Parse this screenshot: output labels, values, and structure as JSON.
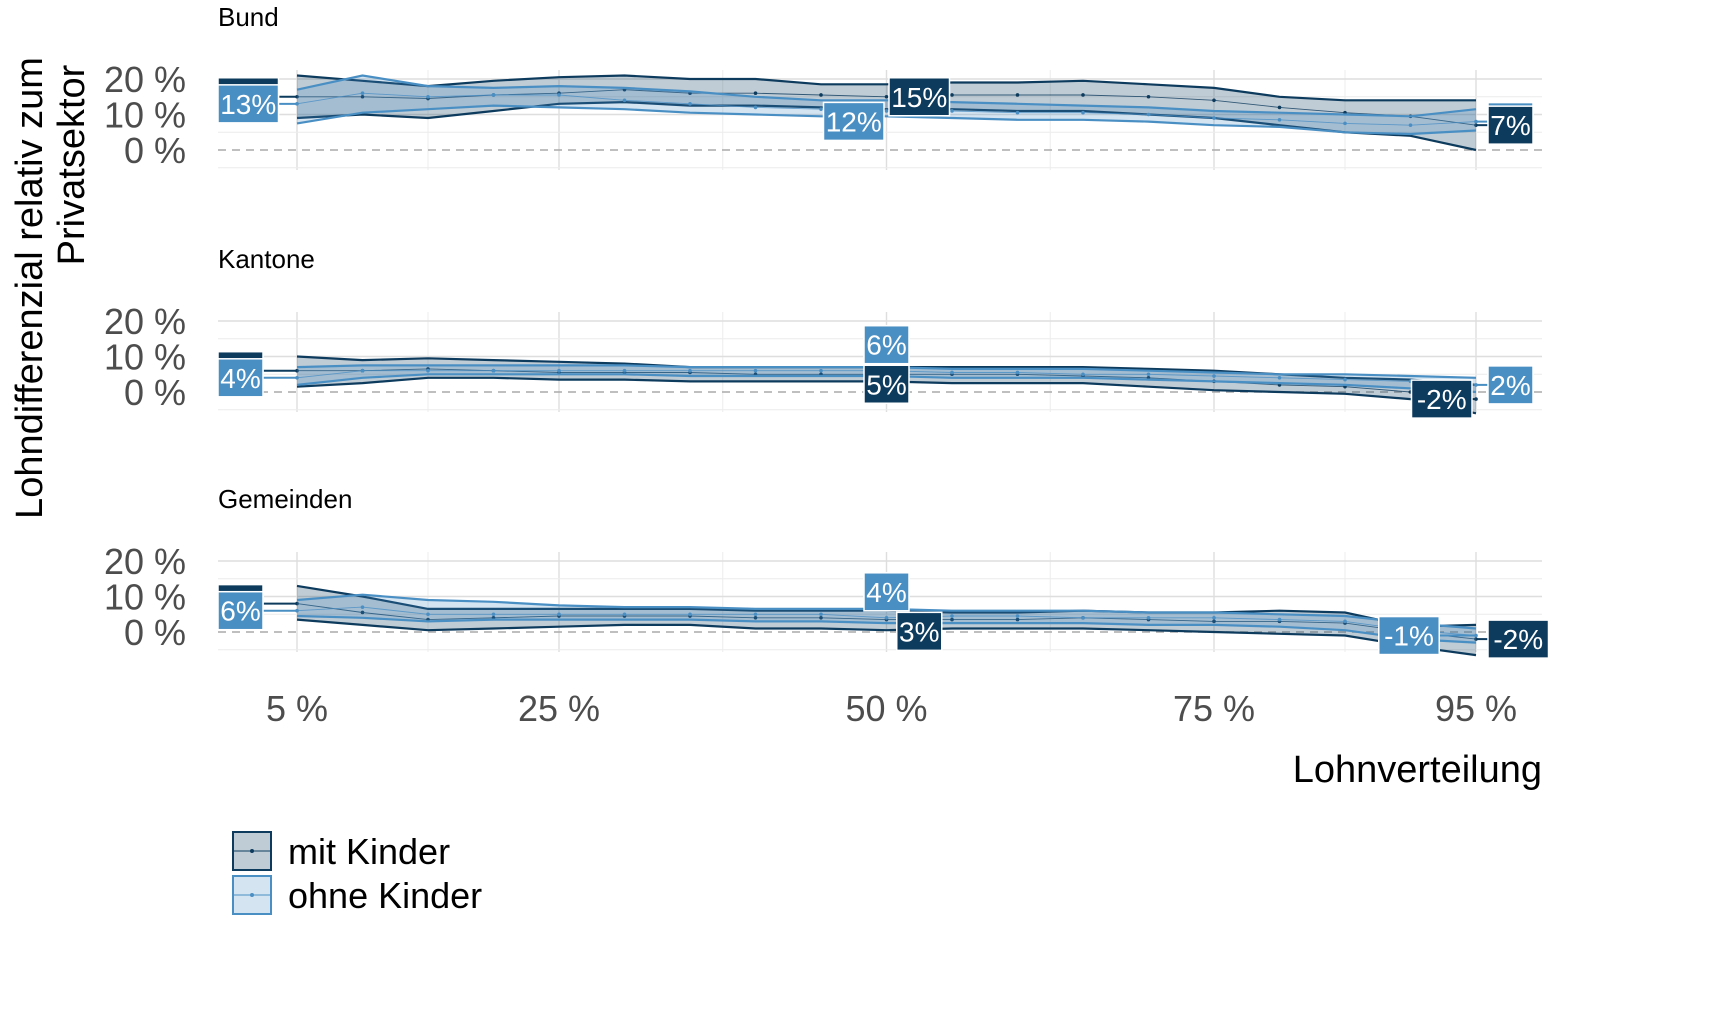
{
  "chart_data": {
    "type": "line",
    "ylabel": "Lohndifferenzial relativ zum Privatsektor",
    "ylabel_lines": [
      "Lohndifferenzial relativ zum",
      "Privatsektor"
    ],
    "xlabel": "Lohnverteilung",
    "x_ticks": [
      5,
      25,
      50,
      75,
      95
    ],
    "x_tick_labels": [
      "5 %",
      "25 %",
      "50 %",
      "75 %",
      "95 %"
    ],
    "y_ticks": [
      0,
      10,
      20
    ],
    "y_tick_labels": [
      "0 %",
      "10 %",
      "20 %"
    ],
    "xlim": [
      0,
      100
    ],
    "ylim": [
      -5,
      20
    ],
    "legend": {
      "placement": "bottom-left",
      "entries": [
        "mit Kinder",
        "ohne Kinder"
      ]
    },
    "colors": {
      "mit": "#0d3b5e",
      "ohne": "#4a8fc4",
      "mit_fill": "#0d3b5e",
      "ohne_fill": "#4a8fc4"
    },
    "x": [
      5,
      10,
      15,
      20,
      25,
      30,
      35,
      40,
      45,
      50,
      55,
      60,
      65,
      70,
      75,
      80,
      85,
      90,
      95
    ],
    "panels": [
      {
        "title": "Bund",
        "series": [
          {
            "name": "mit Kinder",
            "key": "mit",
            "estimate": [
              15,
              15,
              14.5,
              15.5,
              16,
              17,
              16,
              16,
              15.5,
              15,
              15.5,
              15.5,
              15.5,
              15,
              14,
              12,
              10.5,
              9.5,
              7
            ],
            "lower": [
              9,
              10,
              9,
              11,
              13,
              13.5,
              12.5,
              12.5,
              12,
              11.5,
              11.5,
              11,
              11,
              10,
              9,
              7,
              5,
              4,
              0
            ],
            "upper": [
              21,
              19.5,
              18,
              19.5,
              20.5,
              21,
              20,
              20,
              18.5,
              18.5,
              19,
              19,
              19.5,
              18.5,
              17.5,
              15,
              14,
              14,
              14
            ]
          },
          {
            "name": "ohne Kinder",
            "key": "ohne",
            "estimate": [
              13,
              16,
              15,
              15.5,
              15.5,
              14,
              13,
              12,
              11.5,
              11,
              11,
              10.5,
              10.5,
              10,
              9,
              8.5,
              7.5,
              7,
              8
            ],
            "lower": [
              7.5,
              10.5,
              11.5,
              12.5,
              12,
              11.5,
              10.5,
              10,
              9.5,
              9.5,
              9,
              8.5,
              8.5,
              8,
              7,
              6.5,
              5,
              4.5,
              5.5
            ],
            "upper": [
              17,
              21,
              18,
              17.5,
              18,
              17.5,
              16.5,
              15,
              14,
              14,
              13.5,
              13,
              12.5,
              12,
              11,
              10.5,
              10,
              9.5,
              11.5
            ]
          }
        ],
        "labels": [
          {
            "series": "mit",
            "text": "15%",
            "pos": "start",
            "at": 5,
            "value": 15
          },
          {
            "series": "ohne",
            "text": "13%",
            "pos": "start",
            "at": 5,
            "value": 13
          },
          {
            "series": "mit",
            "text": "15%",
            "pos": "mid",
            "at": 52.5,
            "value": 15
          },
          {
            "series": "ohne",
            "text": "12%",
            "pos": "mid",
            "at": 47.5,
            "value": 12
          },
          {
            "series": "ohne",
            "text": "8%",
            "pos": "end",
            "at": 95,
            "value": 8
          },
          {
            "series": "mit",
            "text": "7%",
            "pos": "end",
            "at": 95,
            "value": 7
          }
        ]
      },
      {
        "title": "Kantone",
        "series": [
          {
            "name": "mit Kinder",
            "key": "mit",
            "estimate": [
              6,
              6,
              6.5,
              6,
              5.5,
              5.5,
              5.5,
              5,
              5,
              5,
              5,
              5,
              4.5,
              4,
              3,
              2,
              1.5,
              0,
              -2
            ],
            "lower": [
              1.5,
              2.5,
              4,
              4,
              3.5,
              3.5,
              3,
              3,
              3,
              3,
              2.5,
              2.5,
              2.5,
              1.5,
              0.5,
              0,
              -0.5,
              -2,
              -6
            ],
            "upper": [
              10,
              9,
              9.5,
              9,
              8.5,
              8,
              7,
              7,
              7,
              7,
              7,
              7,
              7,
              6.5,
              6,
              5,
              4,
              3.5,
              2
            ]
          },
          {
            "name": "ohne Kinder",
            "key": "ohne",
            "estimate": [
              4,
              6,
              6,
              6,
              6,
              6,
              6,
              6,
              6,
              6,
              5.5,
              5.5,
              5,
              5,
              4.5,
              4,
              3.5,
              3,
              2
            ],
            "lower": [
              2,
              4,
              5,
              5,
              5,
              5,
              4.5,
              4.5,
              4.5,
              4.5,
              4,
              4,
              4,
              3.5,
              3,
              2.5,
              2,
              1,
              0
            ],
            "upper": [
              7,
              7.5,
              7.5,
              7.5,
              7.5,
              7.5,
              7,
              7,
              7,
              7,
              6.5,
              6.5,
              6.5,
              6,
              5.5,
              5,
              5,
              4.5,
              4
            ]
          }
        ],
        "labels": [
          {
            "series": "mit",
            "text": "6%",
            "pos": "start",
            "at": 5,
            "value": 6
          },
          {
            "series": "ohne",
            "text": "4%",
            "pos": "start",
            "at": 5,
            "value": 4
          },
          {
            "series": "ohne",
            "text": "6%",
            "pos": "mid",
            "at": 50,
            "value": 6
          },
          {
            "series": "mit",
            "text": "5%",
            "pos": "mid",
            "at": 50,
            "value": 5
          },
          {
            "series": "ohne",
            "text": "2%",
            "pos": "end",
            "at": 95,
            "value": 2
          },
          {
            "series": "mit",
            "text": "-2%",
            "pos": "inner-end",
            "at": 95,
            "value": -2
          }
        ]
      },
      {
        "title": "Gemeinden",
        "series": [
          {
            "name": "mit Kinder",
            "key": "mit",
            "estimate": [
              8,
              5.5,
              3.5,
              4,
              4.5,
              4.5,
              4.5,
              4,
              4,
              3.5,
              3.5,
              3.5,
              4,
              3.5,
              3,
              3,
              2.5,
              0,
              -2
            ],
            "lower": [
              3.5,
              2,
              0.5,
              1,
              1.5,
              2,
              2,
              1,
              1,
              0.5,
              1,
              1,
              1,
              0.5,
              0,
              -0.5,
              -1,
              -4,
              -6.5
            ],
            "upper": [
              13,
              10,
              6.5,
              6.5,
              6.5,
              6.5,
              6.5,
              6,
              6,
              6,
              5.5,
              5.5,
              6,
              5.5,
              5.5,
              6,
              5.5,
              1.5,
              2
            ]
          },
          {
            "name": "ohne Kinder",
            "key": "ohne",
            "estimate": [
              6,
              7,
              5,
              5,
              5,
              5,
              5,
              5,
              5,
              4,
              4.5,
              4.5,
              4,
              4,
              4,
              3.5,
              3,
              0.5,
              -1
            ],
            "lower": [
              4.5,
              4,
              3,
              3.5,
              3.5,
              3.5,
              3.5,
              3,
              3,
              2.5,
              2.5,
              2.5,
              2.5,
              2,
              2,
              1.5,
              0.5,
              -2,
              -3
            ],
            "upper": [
              9,
              10.5,
              9,
              8.5,
              7.5,
              7,
              7,
              6.5,
              6.5,
              6.5,
              6,
              6,
              6,
              5.5,
              5.5,
              5,
              4.5,
              2.5,
              1
            ]
          }
        ],
        "labels": [
          {
            "series": "mit",
            "text": "8%",
            "pos": "start",
            "at": 5,
            "value": 8
          },
          {
            "series": "ohne",
            "text": "6%",
            "pos": "start",
            "at": 5,
            "value": 6
          },
          {
            "series": "ohne",
            "text": "4%",
            "pos": "mid",
            "at": 50,
            "value": 4
          },
          {
            "series": "mit",
            "text": "3%",
            "pos": "mid",
            "at": 52.5,
            "value": 3
          },
          {
            "series": "mit",
            "text": "-2%",
            "pos": "end",
            "at": 95,
            "value": -2
          },
          {
            "series": "ohne",
            "text": "-1%",
            "pos": "inner-end",
            "at": 92.5,
            "value": -1
          }
        ]
      }
    ]
  }
}
